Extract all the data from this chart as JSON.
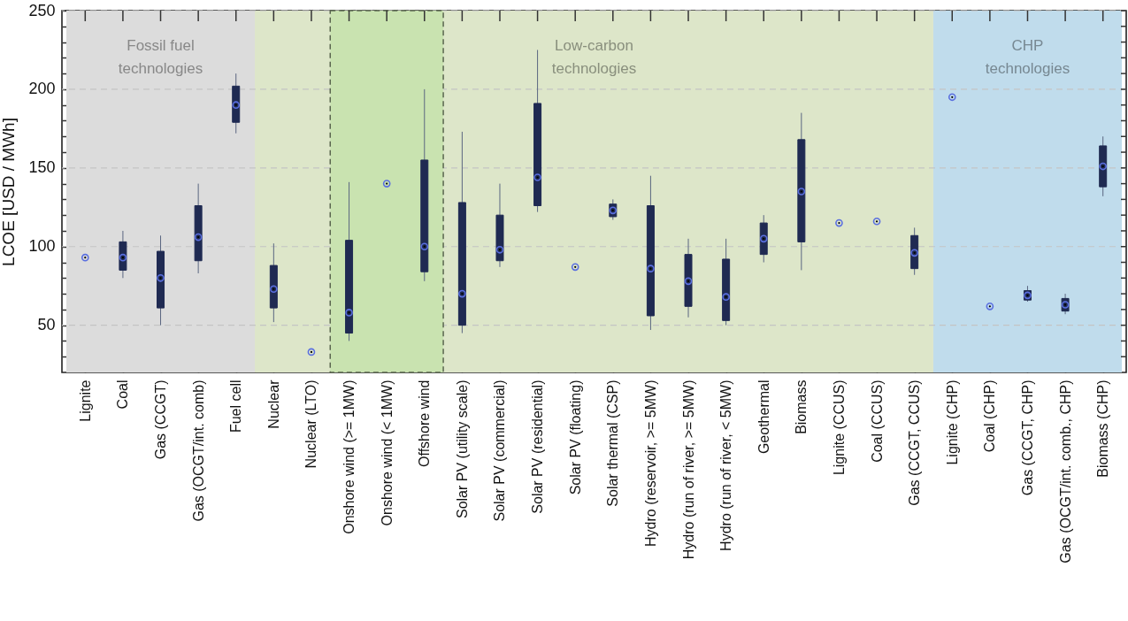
{
  "chart_data": {
    "type": "box",
    "ylabel": "LCOE [USD / MWh]",
    "categories": [
      "Lignite",
      "Coal",
      "Gas (CCGT)",
      "Gas (OCGT/int. comb)",
      "Fuel cell",
      "Nuclear",
      "Nuclear (LTO)",
      "Onshore wind (>= 1MW)",
      "Onshore wind (< 1MW)",
      "Offshore wind",
      "Solar PV (utility scale)",
      "Solar PV (commercial)",
      "Solar PV (residential)",
      "Solar PV (floating)",
      "Solar thermal (CSP)",
      "Hydro (reservoir, >= 5MW)",
      "Hydro (run of river, >= 5MW)",
      "Hydro (run of river, < 5MW)",
      "Geothermal",
      "Biomass",
      "Lignite (CCUS)",
      "Coal (CCUS)",
      "Gas (CCGT, CCUS)",
      "Lignite (CHP)",
      "Coal (CHP)",
      "Gas (CCGT, CHP)",
      "Gas (OCGT/int. comb., CHP)",
      "Biomass (CHP)"
    ],
    "color": "#1f2a52",
    "marker": "circle",
    "boxes": [
      null,
      {
        "low": 80,
        "q1": 85,
        "median": 93,
        "q3": 103,
        "high": 110
      },
      {
        "low": 50,
        "q1": 61,
        "median": 80,
        "q3": 97,
        "high": 107
      },
      {
        "low": 83,
        "q1": 91,
        "median": 106,
        "q3": 126,
        "high": 140
      },
      {
        "low": 172,
        "q1": 179,
        "median": 190,
        "q3": 202,
        "high": 210
      },
      {
        "low": 52,
        "q1": 61,
        "median": 73,
        "q3": 88,
        "high": 102
      },
      null,
      {
        "low": 40,
        "q1": 45,
        "median": 58,
        "q3": 104,
        "high": 141
      },
      null,
      {
        "low": 78,
        "q1": 84,
        "median": 100,
        "q3": 155,
        "high": 200
      },
      {
        "low": 45,
        "q1": 50,
        "median": 70,
        "q3": 128,
        "high": 173
      },
      {
        "low": 87,
        "q1": 91,
        "median": 98,
        "q3": 120,
        "high": 140
      },
      {
        "low": 122,
        "q1": 126,
        "median": 144,
        "q3": 191,
        "high": 225
      },
      null,
      {
        "low": 117,
        "q1": 119,
        "median": 123,
        "q3": 127,
        "high": 130
      },
      {
        "low": 47,
        "q1": 56,
        "median": 86,
        "q3": 126,
        "high": 145
      },
      {
        "low": 55,
        "q1": 62,
        "median": 78,
        "q3": 95,
        "high": 105
      },
      {
        "low": 50,
        "q1": 53,
        "median": 68,
        "q3": 92,
        "high": 105
      },
      {
        "low": 90,
        "q1": 95,
        "median": 105,
        "q3": 115,
        "high": 120
      },
      {
        "low": 85,
        "q1": 103,
        "median": 135,
        "q3": 168,
        "high": 185
      },
      null,
      null,
      {
        "low": 82,
        "q1": 86,
        "median": 96,
        "q3": 107,
        "high": 112
      },
      null,
      null,
      {
        "low": 65,
        "q1": 66,
        "median": 69,
        "q3": 72,
        "high": 75
      },
      {
        "low": 57,
        "q1": 59,
        "median": 63,
        "q3": 67,
        "high": 70
      },
      {
        "low": 132,
        "q1": 138,
        "median": 151,
        "q3": 164,
        "high": 170
      }
    ],
    "series": [
      {
        "type": "scatter",
        "color": "#5a6fe0",
        "x": [
          "Lignite",
          "Nuclear (LTO)",
          "Onshore wind (< 1MW)",
          "Solar PV (floating)",
          "Lignite (CCUS)",
          "Coal (CCUS)",
          "Lignite (CHP)",
          "Coal (CHP)"
        ],
        "values": [
          93,
          33,
          140,
          87,
          115,
          116,
          195,
          62
        ]
      }
    ],
    "ylim": [
      20,
      250
    ],
    "yticks": [
      {
        "value": 30,
        "label": null
      },
      {
        "value": 40,
        "label": null
      },
      50,
      {
        "value": 60,
        "label": null
      },
      {
        "value": 70,
        "label": null
      },
      {
        "value": 80,
        "label": null
      },
      {
        "value": 90,
        "label": null
      },
      100,
      {
        "value": 110,
        "label": null
      },
      {
        "value": 120,
        "label": null
      },
      {
        "value": 130,
        "label": null
      },
      {
        "value": 140,
        "label": null
      },
      150,
      {
        "value": 160,
        "label": null
      },
      {
        "value": 170,
        "label": null
      },
      {
        "value": 180,
        "label": null
      },
      {
        "value": 190,
        "label": null
      },
      200,
      {
        "value": 210,
        "label": null
      },
      {
        "value": 220,
        "label": null
      },
      {
        "value": 230,
        "label": null
      },
      {
        "value": 240,
        "label": null
      },
      250
    ],
    "grid": "y",
    "bands": [
      {
        "axis": "x",
        "from": "Lignite",
        "to": "Fuel cell",
        "label": "Fossil fuel\ntechnologies",
        "color": "#dcdcdc"
      },
      {
        "axis": "x",
        "from": "Nuclear",
        "to": "Gas (CCGT, CCUS)",
        "label": "Low-carbon\ntechnologies",
        "color": "#dde6c9"
      },
      {
        "axis": "x",
        "from": "Lignite (CHP)",
        "to": "Biomass (CHP)",
        "label": "CHP\ntechnologies",
        "color": "#c0dcec"
      },
      {
        "axis": "x",
        "from": "Onshore wind (>= 1MW)",
        "to": "Offshore wind",
        "color": "#c9e3b0"
      }
    ]
  }
}
